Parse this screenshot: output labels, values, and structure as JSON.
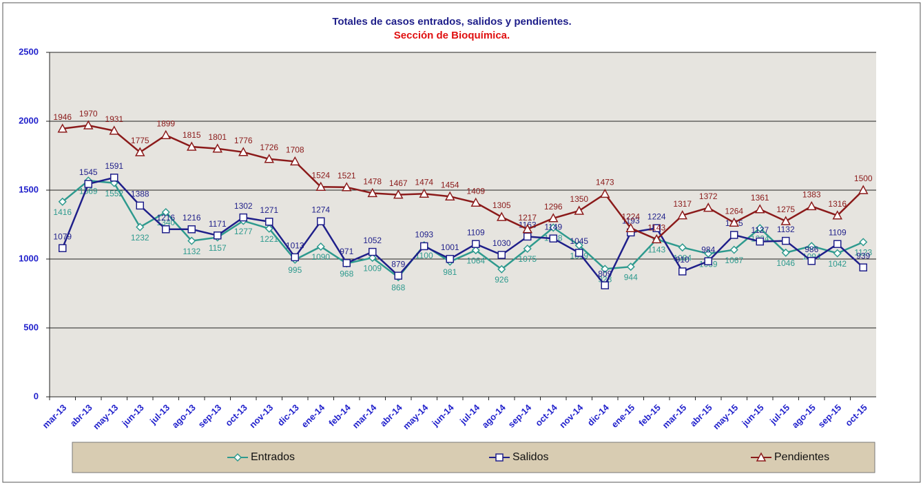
{
  "chart_data": {
    "type": "line",
    "title": "Totales de casos entrados, salidos y pendientes.",
    "subtitle": "Sección de Bioquímica.",
    "categories": [
      "mar-13",
      "abr-13",
      "may-13",
      "jun-13",
      "jul-13",
      "ago-13",
      "sep-13",
      "oct-13",
      "nov-13",
      "dic-13",
      "ene-14",
      "feb-14",
      "mar-14",
      "abr-14",
      "may-14",
      "jun-14",
      "jul-14",
      "ago-14",
      "sep-14",
      "oct-14",
      "nov-14",
      "dic-14",
      "ene-15",
      "feb-15",
      "mar-15",
      "abr-15",
      "may-15",
      "jun-15",
      "jul-15",
      "ago-15",
      "sep-15",
      "oct-15"
    ],
    "series": [
      {
        "name": "Entrados",
        "color": "#2e9a8e",
        "marker": "diamond",
        "values": [
          1416,
          1569,
          1552,
          1232,
          1340,
          1132,
          1157,
          1277,
          1221,
          995,
          1090,
          968,
          1009,
          868,
          1100,
          981,
          1064,
          926,
          1075,
          1228,
          1099,
          928,
          944,
          1143,
          1084,
          1039,
          1067,
          1224,
          1046,
          1094,
          1042,
          1123
        ]
      },
      {
        "name": "Salidos",
        "color": "#1f1f8a",
        "marker": "square",
        "values": [
          1079,
          1545,
          1591,
          1388,
          1216,
          1216,
          1171,
          1302,
          1271,
          1013,
          1274,
          971,
          1052,
          879,
          1093,
          1001,
          1109,
          1030,
          1163,
          1149,
          1045,
          809,
          1193,
          1224,
          910,
          984,
          1175,
          1127,
          1132,
          986,
          1109,
          939
        ]
      },
      {
        "name": "Pendientes",
        "color": "#8b1a1a",
        "marker": "triangle",
        "values": [
          1946,
          1970,
          1931,
          1775,
          1899,
          1815,
          1801,
          1776,
          1726,
          1708,
          1524,
          1521,
          1478,
          1467,
          1474,
          1454,
          1409,
          1305,
          1217,
          1296,
          1350,
          1473,
          1224,
          1143,
          1317,
          1372,
          1264,
          1361,
          1275,
          1383,
          1316,
          1500
        ]
      }
    ],
    "ylim": [
      0,
      2500
    ],
    "yticks": [
      0,
      500,
      1000,
      1500,
      2000,
      2500
    ],
    "grid": true
  }
}
